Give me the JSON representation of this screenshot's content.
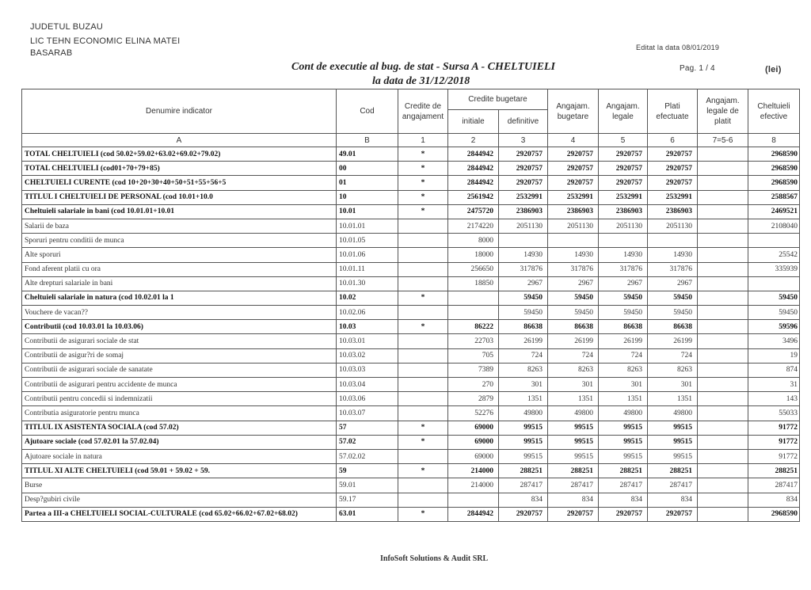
{
  "header": {
    "county": "JUDETUL BUZAU",
    "institution_line1": "LIC TEHN ECONOMIC ELINA MATEI",
    "institution_line2": "BASARAB",
    "edited": "Editat la data 08/01/2019",
    "title": "Cont de executie al bug. de stat - Sursa A - CHELTUIELI",
    "date": "la data de 31/12/2018",
    "page": "Pag.  1  /  4",
    "unit": "(lei)"
  },
  "columns": {
    "name": "Denumire indicator",
    "cod": "Cod",
    "credite_angajament": "Credite de angajament",
    "credite_bugetare": "Credite bugetare",
    "initiale": "initiale",
    "definitive": "definitive",
    "angajam_bugetare": "Angajam. bugetare",
    "angajam_legale": "Angajam. legale",
    "plati": "Plati efectuate",
    "angajam_legale_plati": "Angajam. legale de platit",
    "cheltuieli": "Cheltuieli efective",
    "idx": [
      "A",
      "B",
      "1",
      "2",
      "3",
      "4",
      "5",
      "6",
      "7=5-6",
      "8"
    ]
  },
  "rows": [
    [
      "TOTAL CHELTUIELI  (cod 50.02+59.02+63.02+69.02+79.02)",
      "49.01",
      "*",
      "2844942",
      "2920757",
      "2920757",
      "2920757",
      "2920757",
      "",
      "2968590",
      true
    ],
    [
      "TOTAL CHELTUIELI  (cod01+70+79+85)",
      "00",
      "*",
      "2844942",
      "2920757",
      "2920757",
      "2920757",
      "2920757",
      "",
      "2968590",
      true
    ],
    [
      "CHELTUIELI CURENTE  (cod 10+20+30+40+50+51+55+56+5",
      "01",
      "*",
      "2844942",
      "2920757",
      "2920757",
      "2920757",
      "2920757",
      "",
      "2968590",
      true
    ],
    [
      "TITLUL I  CHELTUIELI DE PERSONAL  (cod 10.01+10.0",
      "10",
      "*",
      "2561942",
      "2532991",
      "2532991",
      "2532991",
      "2532991",
      "",
      "2588567",
      true
    ],
    [
      "Cheltuieli salariale in bani  (cod 10.01.01+10.01",
      "10.01",
      "*",
      "2475720",
      "2386903",
      "2386903",
      "2386903",
      "2386903",
      "",
      "2469521",
      true
    ],
    [
      "Salarii de baza",
      "10.01.01",
      "",
      "2174220",
      "2051130",
      "2051130",
      "2051130",
      "2051130",
      "",
      "2108040",
      false
    ],
    [
      "Sporuri pentru conditii de munca",
      "10.01.05",
      "",
      "8000",
      "",
      "",
      "",
      "",
      "",
      "",
      false
    ],
    [
      "Alte sporuri",
      "10.01.06",
      "",
      "18000",
      "14930",
      "14930",
      "14930",
      "14930",
      "",
      "25542",
      false
    ],
    [
      "Fond aferent platii cu ora",
      "10.01.11",
      "",
      "256650",
      "317876",
      "317876",
      "317876",
      "317876",
      "",
      "335939",
      false
    ],
    [
      "Alte drepturi salariale in bani",
      "10.01.30",
      "",
      "18850",
      "2967",
      "2967",
      "2967",
      "2967",
      "",
      "",
      false
    ],
    [
      "Cheltuieli salariale in natura  (cod 10.02.01 la 1",
      "10.02",
      "*",
      "",
      "59450",
      "59450",
      "59450",
      "59450",
      "",
      "59450",
      true
    ],
    [
      "Vouchere de vacan??",
      "10.02.06",
      "",
      "",
      "59450",
      "59450",
      "59450",
      "59450",
      "",
      "59450",
      false
    ],
    [
      "Contributii  (cod 10.03.01 la 10.03.06)",
      "10.03",
      "*",
      "86222",
      "86638",
      "86638",
      "86638",
      "86638",
      "",
      "59596",
      true
    ],
    [
      "Contributii de asigurari sociale de stat",
      "10.03.01",
      "",
      "22703",
      "26199",
      "26199",
      "26199",
      "26199",
      "",
      "3496",
      false
    ],
    [
      "Contributii de asigur?ri de somaj",
      "10.03.02",
      "",
      "705",
      "724",
      "724",
      "724",
      "724",
      "",
      "19",
      false
    ],
    [
      "Contributii de asigurari sociale de sanatate",
      "10.03.03",
      "",
      "7389",
      "8263",
      "8263",
      "8263",
      "8263",
      "",
      "874",
      false
    ],
    [
      "Contributii de asigurari pentru accidente de munca",
      "10.03.04",
      "",
      "270",
      "301",
      "301",
      "301",
      "301",
      "",
      "31",
      false
    ],
    [
      "Contributii pentru concedii si indemnizatii",
      "10.03.06",
      "",
      "2879",
      "1351",
      "1351",
      "1351",
      "1351",
      "",
      "143",
      false
    ],
    [
      "Contributia asiguratorie pentru munca",
      "10.03.07",
      "",
      "52276",
      "49800",
      "49800",
      "49800",
      "49800",
      "",
      "55033",
      false
    ],
    [
      "TITLUL IX  ASISTENTA SOCIALA  (cod 57.02)",
      "57",
      "*",
      "69000",
      "99515",
      "99515",
      "99515",
      "99515",
      "",
      "91772",
      true
    ],
    [
      "Ajutoare sociale  (cod 57.02.01 la 57.02.04)",
      "57.02",
      "*",
      "69000",
      "99515",
      "99515",
      "99515",
      "99515",
      "",
      "91772",
      true
    ],
    [
      "Ajutoare sociale in natura",
      "57.02.02",
      "",
      "69000",
      "99515",
      "99515",
      "99515",
      "99515",
      "",
      "91772",
      false
    ],
    [
      "TITLUL XI ALTE CHELTUIELI (cod 59.01 + 59.02 + 59.",
      "59",
      "*",
      "214000",
      "288251",
      "288251",
      "288251",
      "288251",
      "",
      "288251",
      true
    ],
    [
      "Burse",
      "59.01",
      "",
      "214000",
      "287417",
      "287417",
      "287417",
      "287417",
      "",
      "287417",
      false
    ],
    [
      "Desp?gubiri civile",
      "59.17",
      "",
      "",
      "834",
      "834",
      "834",
      "834",
      "",
      "834",
      false
    ],
    [
      "Partea a III-a CHELTUIELI SOCIAL-CULTURALE   (cod 65.02+66.02+67.02+68.02)",
      "63.01",
      "*",
      "2844942",
      "2920757",
      "2920757",
      "2920757",
      "2920757",
      "",
      "2968590",
      true
    ]
  ],
  "footer": "InfoSoft Solutions & Audit SRL"
}
